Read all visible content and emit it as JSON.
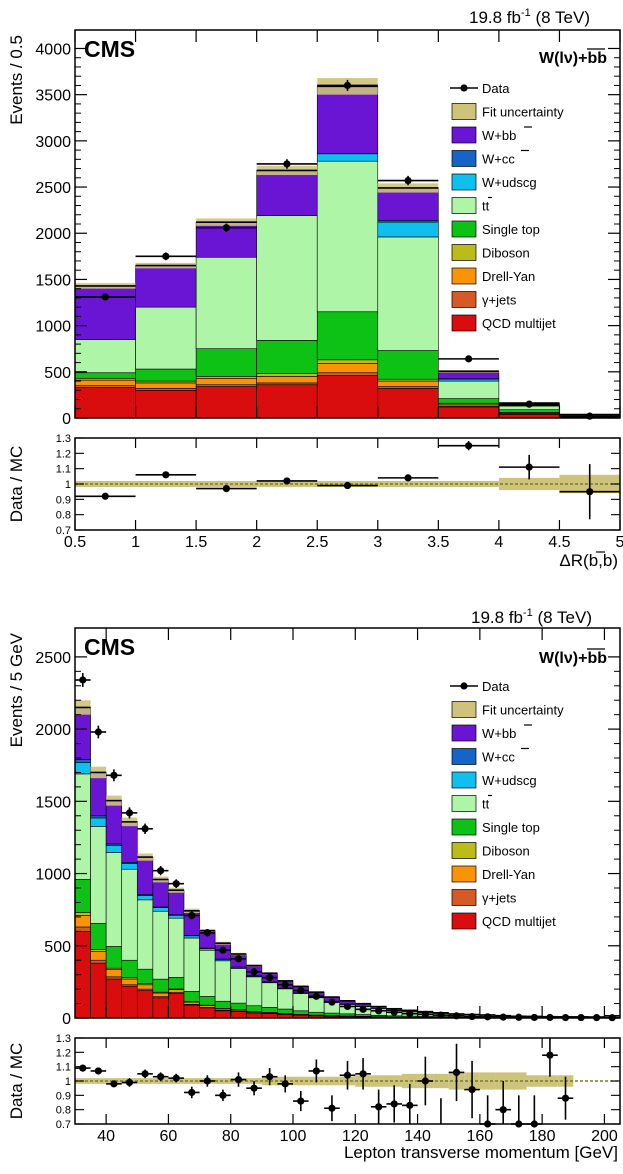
{
  "legend_order": [
    "data",
    "fit",
    "wbb",
    "wcc",
    "wudscg",
    "tt",
    "stop",
    "diboson",
    "dy",
    "gjets",
    "qcd"
  ],
  "legend_labels": {
    "data": "Data",
    "fit": "Fit uncertainty",
    "wbb": "W+bb",
    "wcc": "W+cc",
    "wudscg": "W+udscg",
    "tt": "tt",
    "stop": "Single top",
    "diboson": "Diboson",
    "dy": "Drell-Yan",
    "gjets": "γ+jets",
    "qcd": "QCD multijet"
  },
  "colors": {
    "fit": "#cdc37a",
    "wbb": "#6a14d4",
    "wcc": "#1565c8",
    "wudscg": "#0fbfee",
    "tt": "#aef5a8",
    "stop": "#0ec215",
    "diboson": "#bcbc18",
    "dy": "#fa9308",
    "gjets": "#d65a28",
    "qcd": "#d90d0d"
  },
  "chart_data": [
    {
      "type": "bar",
      "stacked": true,
      "experiment": "CMS",
      "process": "W(lν)+bb",
      "lumi_label": "19.8 fb",
      "lumi_sup": "-1",
      "lumi_energy": "(8 TeV)",
      "ylabel": "Events / 0.5",
      "ratio_ylabel": "Data / MC",
      "xlabel": "ΔR(b,b)",
      "xlim": [
        0.5,
        5
      ],
      "ylim": [
        0,
        4200
      ],
      "ratio_ylim": [
        0.7,
        1.3
      ],
      "x_ticks": [
        0.5,
        1,
        1.5,
        2,
        2.5,
        3,
        3.5,
        4,
        4.5,
        5
      ],
      "x_tick_labels": [
        "0.5",
        "1",
        "1.5",
        "2",
        "2.5",
        "3",
        "3.5",
        "4",
        "4.5",
        "5"
      ],
      "y_ticks": [
        0,
        500,
        1000,
        1500,
        2000,
        2500,
        3000,
        3500,
        4000
      ],
      "y_tick_labels": [
        "0",
        "500",
        "1000",
        "1500",
        "2000",
        "2500",
        "3000",
        "3500",
        "4000"
      ],
      "ratio_ticks": [
        0.7,
        0.8,
        0.9,
        1,
        1.1,
        1.2,
        1.3
      ],
      "ratio_tick_labels": [
        "0.7",
        "0.8",
        "0.9",
        "1",
        "1.1",
        "1.2",
        "1.3"
      ],
      "bin_edges": [
        0.5,
        1,
        1.5,
        2,
        2.5,
        3,
        3.5,
        4,
        4.5,
        5
      ],
      "series": [
        {
          "key": "qcd",
          "name": "QCD multijet",
          "values": [
            330,
            300,
            340,
            360,
            460,
            320,
            120,
            40,
            10
          ]
        },
        {
          "key": "gjets",
          "name": "γ+jets",
          "values": [
            20,
            20,
            20,
            20,
            30,
            20,
            10,
            5,
            0
          ]
        },
        {
          "key": "dy",
          "name": "Drell-Yan",
          "values": [
            60,
            60,
            70,
            70,
            100,
            60,
            20,
            10,
            2
          ]
        },
        {
          "key": "diboson",
          "name": "Diboson",
          "values": [
            20,
            20,
            20,
            30,
            40,
            20,
            10,
            5,
            2
          ]
        },
        {
          "key": "stop",
          "name": "Single top",
          "values": [
            60,
            130,
            300,
            360,
            520,
            310,
            50,
            30,
            6
          ]
        },
        {
          "key": "tt",
          "name": "tt",
          "values": [
            360,
            670,
            990,
            1350,
            1630,
            1230,
            190,
            40,
            10
          ]
        },
        {
          "key": "wudscg",
          "name": "W+udscg",
          "values": [
            0,
            0,
            0,
            0,
            80,
            160,
            20,
            5,
            2
          ]
        },
        {
          "key": "wcc",
          "name": "W+cc",
          "values": [
            0,
            0,
            0,
            0,
            0,
            20,
            5,
            2,
            0
          ]
        },
        {
          "key": "wbb",
          "name": "W+bb",
          "values": [
            580,
            450,
            380,
            490,
            730,
            350,
            80,
            25,
            6
          ]
        }
      ],
      "fit_uncertainty": [
        30,
        30,
        40,
        50,
        90,
        50,
        15,
        8,
        3
      ],
      "data": {
        "x": [
          0.75,
          1.25,
          1.75,
          2.25,
          2.75,
          3.25,
          3.75,
          4.25,
          4.75
        ],
        "y": [
          1310,
          1750,
          2060,
          2750,
          3600,
          2570,
          640,
          150,
          20
        ],
        "yerr": [
          36,
          42,
          45,
          52,
          60,
          51,
          25,
          12,
          5
        ]
      },
      "ratio": {
        "x": [
          0.75,
          1.25,
          1.75,
          2.25,
          2.75,
          3.25,
          3.75,
          4.25,
          4.75
        ],
        "y": [
          0.92,
          1.06,
          0.97,
          1.02,
          0.99,
          1.04,
          1.25,
          1.11,
          0.95
        ],
        "yerr": [
          0.02,
          0.02,
          0.02,
          0.02,
          0.02,
          0.02,
          0.03,
          0.08,
          0.18
        ],
        "band": [
          0.02,
          0.02,
          0.02,
          0.02,
          0.02,
          0.02,
          0.02,
          0.04,
          0.06
        ]
      }
    },
    {
      "type": "bar",
      "stacked": true,
      "experiment": "CMS",
      "process": "W(lν)+bb",
      "lumi_label": "19.8 fb",
      "lumi_sup": "-1",
      "lumi_energy": "(8 TeV)",
      "ylabel": "Events / 5 GeV",
      "ratio_ylabel": "Data / MC",
      "xlabel": "Lepton transverse momentum [GeV]",
      "xlim": [
        30,
        205
      ],
      "ylim": [
        0,
        2700
      ],
      "ratio_ylim": [
        0.7,
        1.3
      ],
      "x_ticks": [
        40,
        60,
        80,
        100,
        120,
        140,
        160,
        180,
        200
      ],
      "x_tick_labels": [
        "40",
        "60",
        "80",
        "100",
        "120",
        "140",
        "160",
        "180",
        "200"
      ],
      "y_ticks": [
        0,
        500,
        1000,
        1500,
        2000,
        2500
      ],
      "y_tick_labels": [
        "0",
        "500",
        "1000",
        "1500",
        "2000",
        "2500"
      ],
      "ratio_ticks": [
        0.7,
        0.8,
        0.9,
        1,
        1.1,
        1.2,
        1.3
      ],
      "ratio_tick_labels": [
        "0.7",
        "0.8",
        "0.9",
        "1",
        "1.1",
        "1.2",
        "1.3"
      ],
      "bin_edges": [
        30,
        35,
        40,
        45,
        50,
        55,
        60,
        65,
        70,
        75,
        80,
        85,
        90,
        95,
        100,
        105,
        110,
        115,
        120,
        125,
        130,
        135,
        140,
        145,
        150,
        155,
        160,
        165,
        170,
        175,
        180,
        185,
        190,
        195,
        200,
        205
      ],
      "series": [
        {
          "key": "qcd",
          "name": "QCD multijet",
          "values": [
            600,
            380,
            270,
            220,
            190,
            140,
            170,
            90,
            70,
            50,
            45,
            35,
            30,
            25,
            20,
            15,
            12,
            10,
            8,
            6,
            5,
            4,
            3,
            3,
            2,
            2,
            2,
            1,
            1,
            1,
            1,
            1,
            1,
            1,
            1
          ]
        },
        {
          "key": "gjets",
          "name": "γ+jets",
          "values": [
            30,
            20,
            15,
            10,
            10,
            8,
            6,
            5,
            4,
            3,
            3,
            2,
            2,
            2,
            1,
            1,
            1,
            1,
            1,
            1,
            1,
            1,
            1,
            1,
            0,
            0,
            0,
            0,
            0,
            0,
            0,
            0,
            0,
            0,
            0
          ]
        },
        {
          "key": "dy",
          "name": "Drell-Yan",
          "values": [
            80,
            60,
            50,
            40,
            30,
            25,
            20,
            15,
            12,
            10,
            8,
            6,
            5,
            4,
            3,
            3,
            2,
            2,
            2,
            1,
            1,
            1,
            1,
            1,
            1,
            1,
            1,
            1,
            0,
            0,
            0,
            0,
            0,
            0,
            0
          ]
        },
        {
          "key": "diboson",
          "name": "Diboson",
          "values": [
            20,
            15,
            10,
            10,
            8,
            6,
            5,
            4,
            3,
            3,
            2,
            2,
            2,
            1,
            1,
            1,
            1,
            1,
            1,
            1,
            0,
            0,
            0,
            0,
            0,
            0,
            0,
            0,
            0,
            0,
            0,
            0,
            0,
            0,
            0
          ]
        },
        {
          "key": "stop",
          "name": "Single top",
          "values": [
            230,
            180,
            150,
            120,
            100,
            90,
            80,
            70,
            60,
            50,
            45,
            40,
            35,
            30,
            25,
            20,
            18,
            15,
            12,
            10,
            8,
            7,
            6,
            5,
            4,
            4,
            3,
            3,
            2,
            2,
            2,
            2,
            2,
            2,
            4
          ]
        },
        {
          "key": "tt",
          "name": "tt",
          "values": [
            730,
            670,
            650,
            630,
            480,
            470,
            410,
            370,
            320,
            280,
            240,
            200,
            170,
            140,
            120,
            100,
            80,
            65,
            55,
            45,
            37,
            30,
            25,
            20,
            16,
            13,
            11,
            9,
            7,
            6,
            5,
            4,
            4,
            3,
            8
          ]
        },
        {
          "key": "wudscg",
          "name": "W+udscg",
          "values": [
            80,
            60,
            50,
            40,
            30,
            25,
            20,
            15,
            12,
            10,
            8,
            6,
            5,
            4,
            3,
            3,
            2,
            2,
            2,
            1,
            1,
            1,
            1,
            1,
            1,
            1,
            1,
            0,
            0,
            0,
            0,
            0,
            0,
            0,
            0
          ]
        },
        {
          "key": "wcc",
          "name": "W+cc",
          "values": [
            20,
            15,
            10,
            8,
            6,
            5,
            4,
            3,
            3,
            2,
            2,
            2,
            1,
            1,
            1,
            1,
            1,
            1,
            0,
            0,
            0,
            0,
            0,
            0,
            0,
            0,
            0,
            0,
            0,
            0,
            0,
            0,
            0,
            0,
            0
          ]
        },
        {
          "key": "wbb",
          "name": "W+bb",
          "values": [
            360,
            300,
            300,
            280,
            260,
            190,
            170,
            170,
            120,
            110,
            90,
            70,
            60,
            50,
            45,
            35,
            28,
            22,
            18,
            14,
            11,
            9,
            7,
            5,
            4,
            3,
            3,
            2,
            2,
            2,
            1,
            1,
            1,
            1,
            2
          ]
        }
      ],
      "fit_uncertainty": [
        50,
        40,
        35,
        30,
        25,
        20,
        18,
        15,
        12,
        10,
        8,
        7,
        6,
        5,
        4,
        4,
        3,
        3,
        2,
        2,
        2,
        2,
        1,
        1,
        1,
        1,
        1,
        1,
        1,
        1,
        1,
        1,
        1,
        1,
        2
      ],
      "data": {
        "x": [
          32.5,
          37.5,
          42.5,
          47.5,
          52.5,
          57.5,
          62.5,
          67.5,
          72.5,
          77.5,
          82.5,
          87.5,
          92.5,
          97.5,
          102.5,
          107.5,
          112.5,
          117.5,
          122.5,
          127.5,
          132.5,
          137.5,
          142.5,
          147.5,
          152.5,
          157.5,
          162.5,
          167.5,
          172.5,
          177.5,
          182.5,
          187.5,
          192.5,
          197.5,
          202.5
        ],
        "y": [
          2340,
          1980,
          1680,
          1420,
          1310,
          1020,
          930,
          710,
          590,
          470,
          410,
          320,
          280,
          230,
          190,
          150,
          110,
          80,
          60,
          50,
          40,
          30,
          25,
          20,
          15,
          10,
          8,
          6,
          5,
          4,
          4,
          3,
          3,
          3,
          2
        ],
        "yerr": [
          48,
          44,
          41,
          38,
          36,
          32,
          30,
          27,
          24,
          22,
          20,
          18,
          17,
          15,
          14,
          12,
          10,
          9,
          8,
          7,
          6,
          5,
          5,
          4,
          4,
          3,
          3,
          2,
          2,
          2,
          2,
          2,
          2,
          2,
          2
        ]
      },
      "ratio": {
        "x": [
          32.5,
          37.5,
          42.5,
          47.5,
          52.5,
          57.5,
          62.5,
          67.5,
          72.5,
          77.5,
          82.5,
          87.5,
          92.5,
          97.5,
          102.5,
          107.5,
          112.5,
          117.5,
          122.5,
          127.5,
          132.5,
          137.5,
          142.5,
          147.5,
          152.5,
          157.5,
          162.5,
          167.5,
          172.5,
          177.5,
          182.5,
          187.5
        ],
        "y": [
          1.09,
          1.07,
          0.98,
          0.99,
          1.05,
          1.03,
          1.02,
          0.92,
          1.0,
          0.9,
          1.01,
          0.95,
          1.03,
          0.98,
          0.86,
          1.07,
          0.81,
          1.04,
          1.05,
          0.82,
          0.84,
          0.83,
          1.0,
          0.68,
          1.06,
          0.94,
          0.7,
          0.8,
          0.7,
          0.7,
          1.18,
          0.88
        ],
        "yerr": [
          0.02,
          0.02,
          0.02,
          0.03,
          0.03,
          0.03,
          0.03,
          0.04,
          0.04,
          0.04,
          0.05,
          0.05,
          0.06,
          0.06,
          0.07,
          0.08,
          0.09,
          0.1,
          0.11,
          0.12,
          0.13,
          0.15,
          0.17,
          0.2,
          0.2,
          0.2,
          0.2,
          0.2,
          0.2,
          0.2,
          0.15,
          0.15
        ],
        "band": [
          0.02,
          0.02,
          0.02,
          0.02,
          0.02,
          0.02,
          0.02,
          0.02,
          0.02,
          0.02,
          0.02,
          0.02,
          0.03,
          0.03,
          0.03,
          0.03,
          0.03,
          0.03,
          0.04,
          0.04,
          0.04,
          0.05,
          0.05,
          0.05,
          0.06,
          0.06,
          0.06,
          0.06,
          0.06,
          0.04,
          0.04,
          0.04
        ]
      }
    }
  ]
}
